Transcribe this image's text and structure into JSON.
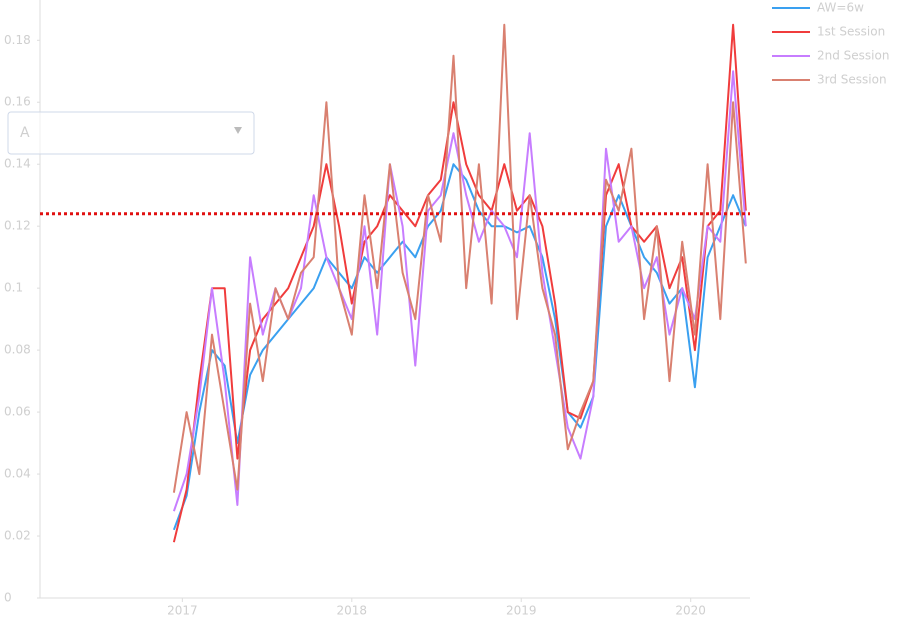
{
  "chart_data": {
    "type": "line",
    "selector": "A",
    "x": [
      2016.95,
      2017.025,
      2017.1,
      2017.175,
      2017.25,
      2017.325,
      2017.4,
      2017.475,
      2017.55,
      2017.625,
      2017.7,
      2017.775,
      2017.85,
      2017.925,
      2018.0,
      2018.075,
      2018.15,
      2018.225,
      2018.3,
      2018.375,
      2018.45,
      2018.525,
      2018.6,
      2018.675,
      2018.75,
      2018.825,
      2018.9,
      2018.975,
      2019.05,
      2019.125,
      2019.2,
      2019.275,
      2019.35,
      2019.425,
      2019.5,
      2019.575,
      2019.65,
      2019.725,
      2019.8,
      2019.875,
      2019.95,
      2020.025,
      2020.1,
      2020.175,
      2020.25,
      2020.325
    ],
    "series": [
      {
        "name": "AW=6w",
        "color": "#3aa0f0",
        "values": [
          0.022,
          0.033,
          0.06,
          0.08,
          0.075,
          0.05,
          0.072,
          0.08,
          0.085,
          0.09,
          0.095,
          0.1,
          0.11,
          0.105,
          0.1,
          0.11,
          0.105,
          0.11,
          0.115,
          0.11,
          0.12,
          0.125,
          0.14,
          0.135,
          0.125,
          0.12,
          0.12,
          0.118,
          0.12,
          0.11,
          0.09,
          0.06,
          0.055,
          0.065,
          0.12,
          0.13,
          0.12,
          0.11,
          0.105,
          0.095,
          0.1,
          0.068,
          0.11,
          0.12,
          0.13,
          0.12
        ]
      },
      {
        "name": "1st Session",
        "color": "#f03c3c",
        "values": [
          0.018,
          0.035,
          0.07,
          0.1,
          0.1,
          0.045,
          0.08,
          0.09,
          0.095,
          0.1,
          0.11,
          0.12,
          0.14,
          0.12,
          0.095,
          0.115,
          0.12,
          0.13,
          0.125,
          0.12,
          0.13,
          0.135,
          0.16,
          0.14,
          0.13,
          0.125,
          0.14,
          0.125,
          0.13,
          0.12,
          0.095,
          0.06,
          0.058,
          0.07,
          0.13,
          0.14,
          0.12,
          0.115,
          0.12,
          0.1,
          0.11,
          0.08,
          0.12,
          0.125,
          0.185,
          0.125
        ]
      },
      {
        "name": "2nd Session",
        "color": "#c77dff",
        "values": [
          0.028,
          0.04,
          0.065,
          0.1,
          0.07,
          0.03,
          0.11,
          0.085,
          0.1,
          0.09,
          0.1,
          0.13,
          0.11,
          0.1,
          0.09,
          0.12,
          0.085,
          0.14,
          0.12,
          0.075,
          0.125,
          0.13,
          0.15,
          0.13,
          0.115,
          0.125,
          0.12,
          0.11,
          0.15,
          0.105,
          0.08,
          0.055,
          0.045,
          0.065,
          0.145,
          0.115,
          0.12,
          0.1,
          0.11,
          0.085,
          0.1,
          0.09,
          0.12,
          0.115,
          0.17,
          0.12
        ]
      },
      {
        "name": "3rd Session",
        "color": "#d98070",
        "values": [
          0.034,
          0.06,
          0.04,
          0.085,
          0.06,
          0.035,
          0.095,
          0.07,
          0.1,
          0.09,
          0.105,
          0.11,
          0.16,
          0.1,
          0.085,
          0.13,
          0.1,
          0.14,
          0.105,
          0.09,
          0.13,
          0.115,
          0.175,
          0.1,
          0.14,
          0.095,
          0.185,
          0.09,
          0.13,
          0.1,
          0.085,
          0.048,
          0.06,
          0.07,
          0.135,
          0.125,
          0.145,
          0.09,
          0.12,
          0.07,
          0.115,
          0.085,
          0.14,
          0.09,
          0.16,
          0.108
        ]
      }
    ],
    "reference_line": 0.124,
    "xlim": [
      2016.16,
      2020.35
    ],
    "xticks": [
      2017,
      2018,
      2019,
      2020
    ],
    "ylim": [
      0,
      0.193
    ],
    "yticks": [
      0,
      0.02,
      0.04,
      0.06,
      0.08,
      0.1,
      0.12,
      0.14,
      0.16,
      0.18
    ]
  }
}
